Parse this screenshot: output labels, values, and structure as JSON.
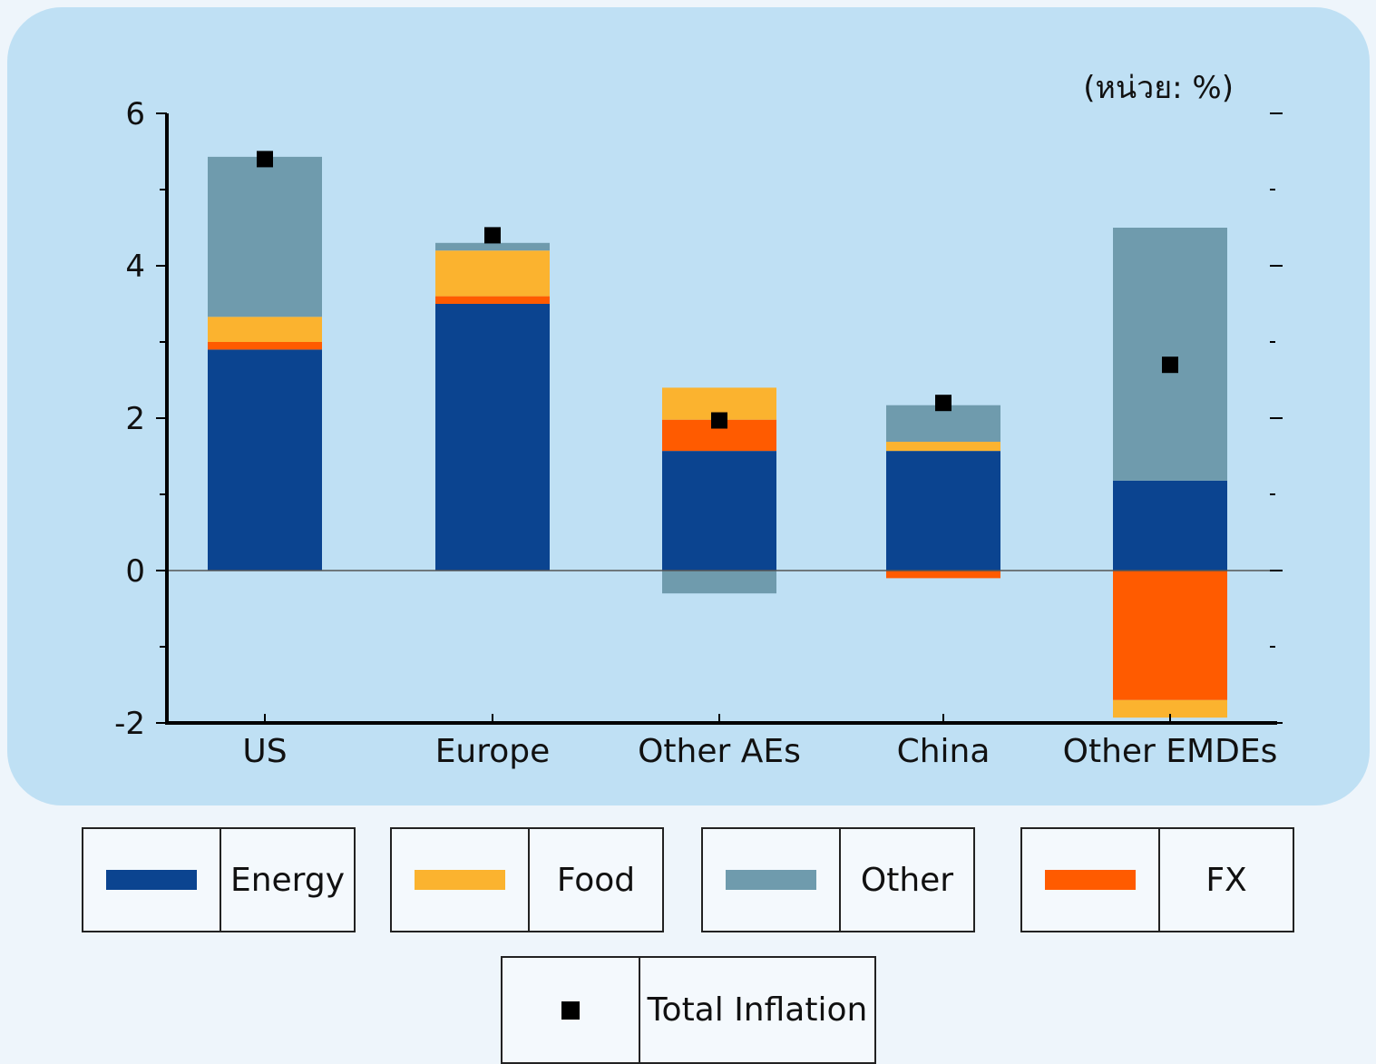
{
  "unit_label": "(หน่วย: %)",
  "colors": {
    "energy": "#0b4490",
    "food": "#fbb32f",
    "other": "#6f9bad",
    "fx": "#ff5b00",
    "marker": "#000000",
    "panel": "#bfe0f4"
  },
  "legend": {
    "energy": "Energy",
    "food": "Food",
    "other": "Other",
    "fx": "FX",
    "total": "Total Inflation"
  },
  "chart_data": {
    "type": "bar",
    "stacked": true,
    "categories": [
      "US",
      "Europe",
      "Other AEs",
      "China",
      "Other EMDEs"
    ],
    "series": [
      {
        "name": "Energy",
        "key": "energy",
        "values": [
          2.9,
          3.5,
          1.57,
          1.57,
          1.18
        ]
      },
      {
        "name": "FX",
        "key": "fx",
        "values": [
          0.1,
          0.1,
          0.41,
          -0.1,
          -1.7
        ]
      },
      {
        "name": "Food",
        "key": "food",
        "values": [
          0.33,
          0.6,
          0.42,
          0.12,
          -0.23
        ]
      },
      {
        "name": "Other",
        "key": "other",
        "values": [
          2.1,
          0.1,
          -0.3,
          0.48,
          3.32
        ]
      }
    ],
    "total_inflation": {
      "name": "Total Inflation",
      "values": [
        5.4,
        4.4,
        1.97,
        2.2,
        2.7
      ]
    },
    "yticks": [
      -2,
      0,
      2,
      4,
      6
    ],
    "ylim": [
      -2,
      6
    ],
    "xlabel": "",
    "ylabel": "",
    "grid": false
  }
}
